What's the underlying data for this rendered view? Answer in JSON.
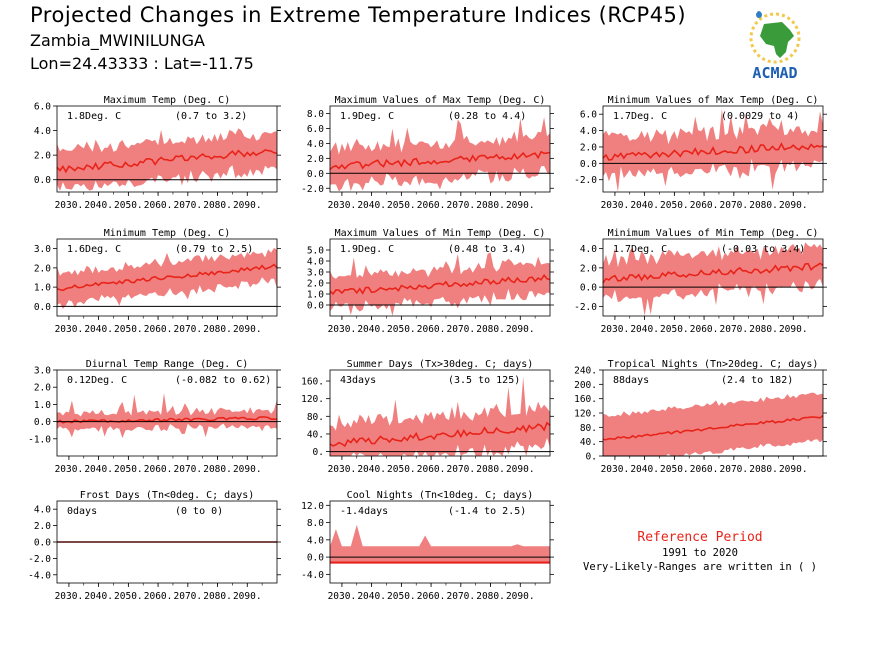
{
  "header": {
    "title": "Projected Changes in Extreme Temperature Indices (RCP45)",
    "station": "Zambia_MWINILUNGA",
    "coords": "Lon=24.43333 : Lat=-11.75"
  },
  "logo": {
    "text": "ACMAD",
    "icon": "africa-map-logo-icon"
  },
  "reference": {
    "title": "Reference Period",
    "period": "1991 to 2020",
    "note": "Very-Likely-Ranges are written in ( )"
  },
  "colors": {
    "band": "#f08080",
    "line": "#e8241a",
    "zero": "#000000",
    "title": "#e8241a"
  },
  "chart_data": [
    {
      "type": "area",
      "title": "Maximum Temp (Deg. C)",
      "value_label": "1.8Deg. C",
      "range_label": "(0.7 to 3.2)",
      "ylim": [
        -1.0,
        6.0
      ],
      "yticks": [
        "6.0",
        "4.0",
        "2.0",
        "0.0"
      ],
      "ytick_values": [
        6,
        4,
        2,
        0
      ],
      "xticks": [
        "2030.",
        "2040.",
        "2050.",
        "2060.",
        "2070.",
        "2080.",
        "2090."
      ],
      "x_start": 2026,
      "x_end": 2100,
      "mean_start": 0.8,
      "mean_end": 2.4,
      "spread": 1.1,
      "noise": 0.9,
      "spike_up": 1.0,
      "spike_down": 1.5
    },
    {
      "type": "area",
      "title": "Maximum Values of Max Temp (Deg. C)",
      "value_label": "1.9Deg. C",
      "range_label": "(0.28 to 4.4)",
      "ylim": [
        -2.5,
        9.0
      ],
      "yticks": [
        "8.0",
        "6.0",
        "4.0",
        "2.0",
        "0.0",
        "-2.0"
      ],
      "ytick_values": [
        8,
        6,
        4,
        2,
        0,
        -2
      ],
      "xticks": [
        "2030.",
        "2040.",
        "2050.",
        "2060.",
        "2070.",
        "2080.",
        "2090."
      ],
      "x_start": 2026,
      "x_end": 2100,
      "mean_start": 0.9,
      "mean_end": 2.6,
      "spread": 1.6,
      "noise": 1.6,
      "spike_up": 2.5,
      "spike_down": 1.5
    },
    {
      "type": "area",
      "title": "Minimum Values of Max Temp (Deg. C)",
      "value_label": "1.7Deg. C",
      "range_label": "(0.0029 to 4)",
      "ylim": [
        -3.5,
        7.0
      ],
      "yticks": [
        "6.0",
        "4.0",
        "2.0",
        "0.0",
        "-2.0"
      ],
      "ytick_values": [
        6,
        4,
        2,
        0,
        -2
      ],
      "xticks": [
        "2030.",
        "2040.",
        "2050.",
        "2060.",
        "2070.",
        "2080.",
        "2090."
      ],
      "x_start": 2026,
      "x_end": 2100,
      "mean_start": 0.8,
      "mean_end": 2.2,
      "spread": 1.5,
      "noise": 1.5,
      "spike_up": 2.5,
      "spike_down": 3.0
    },
    {
      "type": "area",
      "title": "Minimum Temp (Deg. C)",
      "value_label": "1.6Deg. C",
      "range_label": "(0.79 to 2.5)",
      "ylim": [
        -0.5,
        3.5
      ],
      "yticks": [
        "3.0",
        "2.0",
        "1.0",
        "0.0"
      ],
      "ytick_values": [
        3,
        2,
        1,
        0
      ],
      "xticks": [
        "2030.",
        "2040.",
        "2050.",
        "2060.",
        "2070.",
        "2080.",
        "2090."
      ],
      "x_start": 2026,
      "x_end": 2100,
      "mean_start": 0.9,
      "mean_end": 2.1,
      "spread": 0.6,
      "noise": 0.35,
      "spike_up": 0.5,
      "spike_down": 0.5
    },
    {
      "type": "area",
      "title": "Maximum Values of Min Temp (Deg. C)",
      "value_label": "1.9Deg. C",
      "range_label": "(0.48 to 3.4)",
      "ylim": [
        -1.0,
        6.0
      ],
      "yticks": [
        "5.0",
        "4.0",
        "3.0",
        "2.0",
        "1.0",
        "0.0"
      ],
      "ytick_values": [
        5,
        4,
        3,
        2,
        1,
        0
      ],
      "xticks": [
        "2030.",
        "2040.",
        "2050.",
        "2060.",
        "2070.",
        "2080.",
        "2090."
      ],
      "x_start": 2026,
      "x_end": 2100,
      "mean_start": 1.1,
      "mean_end": 2.5,
      "spread": 1.0,
      "noise": 0.9,
      "spike_up": 1.5,
      "spike_down": 1.0
    },
    {
      "type": "area",
      "title": "Minimum Values of Min Temp (Deg. C)",
      "value_label": "1.7Deg. C",
      "range_label": "(-0.03 to 3.4)",
      "ylim": [
        -3.0,
        5.0
      ],
      "yticks": [
        "4.0",
        "2.0",
        "0.0",
        "-2.0"
      ],
      "ytick_values": [
        4,
        2,
        0,
        -2
      ],
      "xticks": [
        "2030.",
        "2040.",
        "2050.",
        "2060.",
        "2070.",
        "2080.",
        "2090."
      ],
      "x_start": 2026,
      "x_end": 2100,
      "mean_start": 0.8,
      "mean_end": 2.2,
      "spread": 1.4,
      "noise": 1.2,
      "spike_up": 1.5,
      "spike_down": 2.5
    },
    {
      "type": "area",
      "title": "Diurnal Temp Range (Deg. C)",
      "value_label": "0.12Deg. C",
      "range_label": "(-0.082 to 0.62)",
      "ylim": [
        -2.0,
        3.0
      ],
      "yticks": [
        "3.0",
        "2.0",
        "1.0",
        "0.0",
        "-1.0"
      ],
      "ytick_values": [
        3,
        2,
        1,
        0,
        -1
      ],
      "xticks": [
        "2030.",
        "2040.",
        "2050.",
        "2060.",
        "2070.",
        "2080.",
        "2090."
      ],
      "x_start": 2026,
      "x_end": 2100,
      "mean_start": 0.0,
      "mean_end": 0.2,
      "spread": 0.3,
      "noise": 0.3,
      "spike_up": 1.2,
      "spike_down": 0.7
    },
    {
      "type": "area",
      "title": "Summer Days (Tx>30deg. C; days)",
      "value_label": "43days",
      "range_label": "(3.5 to 125)",
      "ylim": [
        -10,
        185
      ],
      "yticks": [
        "160.",
        "120.",
        "80.",
        "40.",
        "0."
      ],
      "ytick_values": [
        160,
        120,
        80,
        40,
        0
      ],
      "xticks": [
        "2030.",
        "2040.",
        "2050.",
        "2060.",
        "2070.",
        "2080.",
        "2090."
      ],
      "x_start": 2026,
      "x_end": 2100,
      "mean_start": 18,
      "mean_end": 58,
      "spread": 30,
      "noise": 28,
      "spike_up": 60,
      "spike_down": 20
    },
    {
      "type": "area",
      "title": "Tropical Nights (Tn>20deg. C; days)",
      "value_label": "88days",
      "range_label": "(2.4 to 182)",
      "ylim": [
        0,
        240
      ],
      "yticks": [
        "240.",
        "200.",
        "160.",
        "120.",
        "80.",
        "40.",
        "0."
      ],
      "ytick_values": [
        240,
        200,
        160,
        120,
        80,
        40,
        0
      ],
      "xticks": [
        "2030.",
        "2040.",
        "2050.",
        "2060.",
        "2070.",
        "2080.",
        "2090."
      ],
      "x_start": 2026,
      "x_end": 2100,
      "mean_start": 45,
      "mean_end": 110,
      "spread": 60,
      "noise": 12,
      "spike_up": 20,
      "spike_down": 15
    },
    {
      "type": "area",
      "title": "Frost Days (Tn<0deg. C; days)",
      "value_label": "0days",
      "range_label": "(0 to 0)",
      "ylim": [
        -5.0,
        5.0
      ],
      "yticks": [
        "4.0",
        "2.0",
        "0.0",
        "-2.0",
        "-4.0"
      ],
      "ytick_values": [
        4,
        2,
        0,
        -2,
        -4
      ],
      "xticks": [
        "2030.",
        "2040.",
        "2050.",
        "2060.",
        "2070.",
        "2080.",
        "2090."
      ],
      "x_start": 2026,
      "x_end": 2100,
      "mean_start": 0,
      "mean_end": 0,
      "spread": 0,
      "noise": 0,
      "spike_up": 0,
      "spike_down": 0
    },
    {
      "type": "area",
      "title": "Cool Nights (Tn<10deg. C; days)",
      "value_label": "-1.4days",
      "range_label": "(-1.4 to 2.5)",
      "ylim": [
        -6.0,
        13.0
      ],
      "yticks": [
        "12.0",
        "8.0",
        "4.0",
        "0.0",
        "-4.0"
      ],
      "ytick_values": [
        12,
        8,
        4,
        0,
        -4
      ],
      "xticks": [
        "2030.",
        "2040.",
        "2050.",
        "2060.",
        "2070.",
        "2080.",
        "2090."
      ],
      "x_start": 2026,
      "x_end": 2100,
      "mean_start": -1.2,
      "mean_end": -1.2,
      "spread": 2.5,
      "noise": 0,
      "spike_up": 0,
      "spike_down": 0,
      "flat_band": [
        -1.4,
        2.5
      ],
      "peaks": [
        {
          "x": 2028,
          "y": 6.5
        },
        {
          "x": 2035,
          "y": 7.5
        },
        {
          "x": 2058,
          "y": 5.0
        },
        {
          "x": 2089,
          "y": 3.0
        }
      ]
    }
  ]
}
